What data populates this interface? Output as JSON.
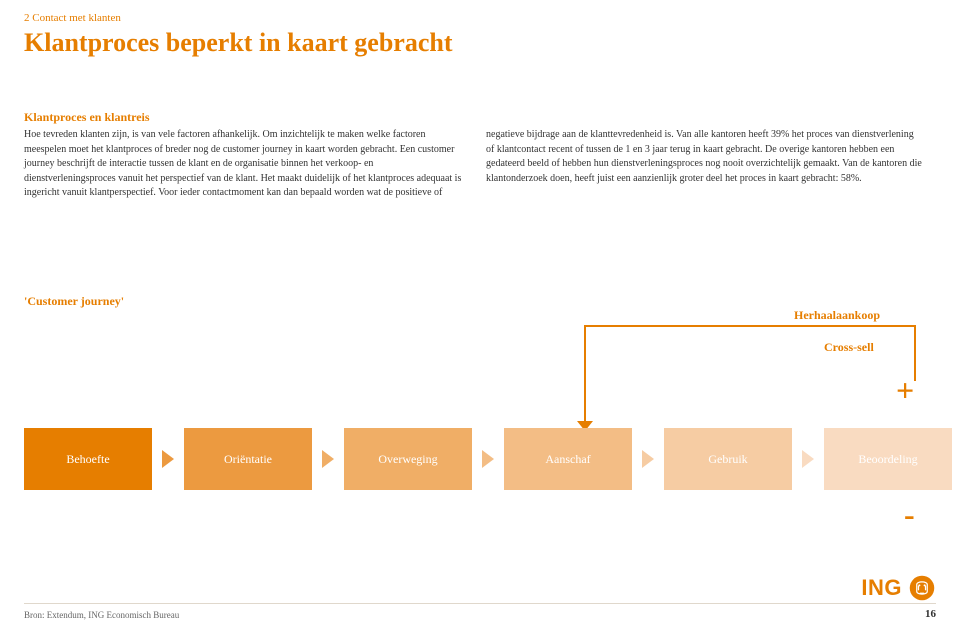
{
  "breadcrumb": "2 Contact met klanten",
  "title": "Klantproces beperkt in kaart gebracht",
  "subtitle": "Klantproces en klantreis",
  "body": "Hoe tevreden klanten zijn, is van vele factoren afhankelijk. Om inzichtelijk te maken welke factoren meespelen moet het klantproces of breder nog de customer journey in kaart worden gebracht. Een customer journey beschrijft de interactie tussen de klant en de organisatie binnen het verkoop- en dienstverleningsproces vanuit het perspectief van de klant. Het maakt duidelijk of het klantproces adequaat is ingericht vanuit klantperspectief. Voor ieder contactmoment kan dan bepaald worden wat de positieve of negatieve bijdrage aan de klanttevredenheid is. Van alle kantoren heeft 39% het proces van dienstverlening of klantcontact recent of tussen de 1 en 3 jaar terug in kaart gebracht. De overige kantoren hebben een gedateerd beeld of hebben hun dienstverleningsproces nog nooit overzichtelijk gemaakt. Van de kantoren die klantonderzoek doen, heeft juist een aanzienlijk groter deel het proces in kaart gebracht: 58%.",
  "cj_label": "'Customer journey'",
  "diagram": {
    "stages": [
      {
        "label": "Behoefte",
        "color": "#e67e00"
      },
      {
        "label": "Oriëntatie",
        "color": "#ec9a40"
      },
      {
        "label": "Overweging",
        "color": "#f0ae66"
      },
      {
        "label": "Aanschaf",
        "color": "#f3bd85"
      },
      {
        "label": "Gebruik",
        "color": "#f6cca3"
      },
      {
        "label": "Beoordeling",
        "color": "#f9dbc1"
      }
    ],
    "arrow_color_map": [
      "#ec9a40",
      "#f0ae66",
      "#f3bd85",
      "#f6cca3",
      "#f9dbc1",
      "#f9dbc1"
    ],
    "feedback_color": "#e67e00",
    "herhaal_label": "Herhaalaankoop",
    "cross_sell_label": "Cross-sell",
    "plus": "+",
    "minus": "-"
  },
  "logo_text": "ING",
  "source": "Bron: Extendum, ING Economisch Bureau",
  "page_num": "16",
  "colors": {
    "accent": "#e67e00",
    "text": "#333333",
    "background": "#ffffff"
  }
}
